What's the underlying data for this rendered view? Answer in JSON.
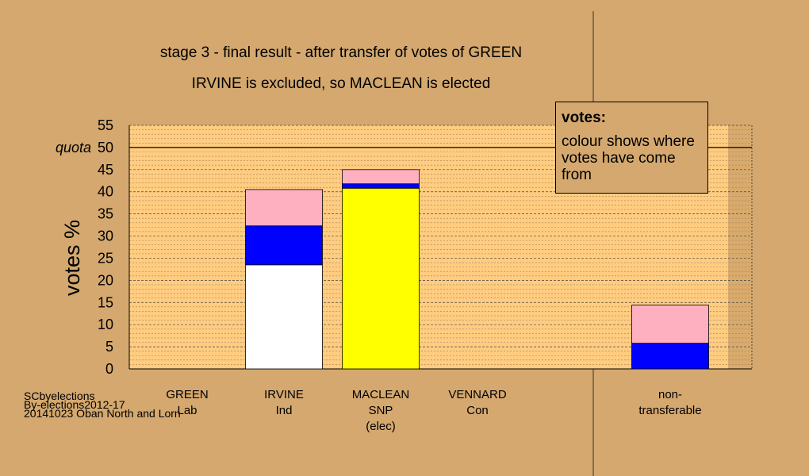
{
  "header": {
    "title": "stage 3 - final result - after transfer of votes of GREEN",
    "subtitle": "IRVINE is excluded, so MACLEAN is elected"
  },
  "legend": {
    "title": "votes:",
    "body": "colour shows where votes have come from"
  },
  "source": {
    "line1": "SCbyelections",
    "line2": "By-elections2012-17",
    "line3": "20141023 Oban North and Lorn"
  },
  "chart_data": {
    "type": "bar",
    "stacked": true,
    "title": "stage 3 - final result - after transfer of votes of GREEN",
    "ylabel": "votes %",
    "ylim": [
      0,
      55
    ],
    "yticks": [
      0,
      5,
      10,
      15,
      20,
      25,
      30,
      35,
      40,
      45,
      50,
      55
    ],
    "quota": {
      "label": "quota",
      "value": 50
    },
    "grid": true,
    "categories": [
      {
        "lines": [
          "GREEN",
          "Lab"
        ]
      },
      {
        "lines": [
          "IRVINE",
          "Ind"
        ]
      },
      {
        "lines": [
          "MACLEAN",
          "SNP",
          "(elec)"
        ]
      },
      {
        "lines": [
          "VENNARD",
          "Con"
        ]
      },
      {
        "lines": [
          "non-",
          "transferable"
        ]
      }
    ],
    "series": [
      {
        "color": "#ffffff",
        "values": [
          0,
          23.5,
          0,
          0,
          0
        ]
      },
      {
        "color": "#ffff00",
        "values": [
          0,
          0,
          40.8,
          0,
          0
        ]
      },
      {
        "color": "#0000ff",
        "values": [
          0,
          8.8,
          1.0,
          0,
          5.8
        ]
      },
      {
        "color": "#ffb0c0",
        "values": [
          0,
          8.2,
          3.2,
          0,
          8.6
        ]
      }
    ],
    "colors": {
      "background": "#d4a86e",
      "plot": "#ffcc80"
    }
  }
}
